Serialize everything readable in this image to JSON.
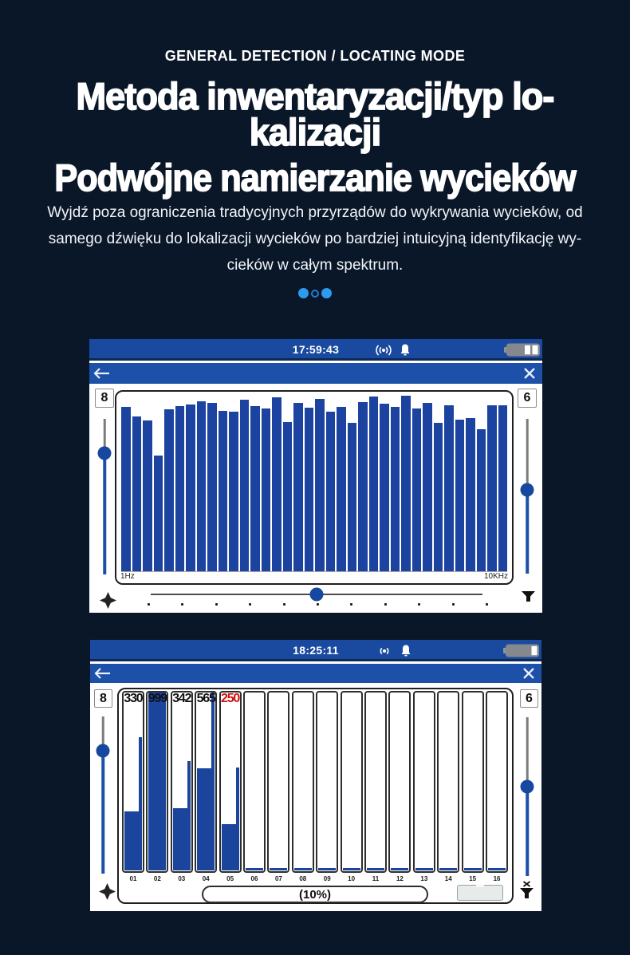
{
  "page": {
    "background": "#0a1728",
    "accent_blue": "#2e9bf0"
  },
  "header": {
    "eyebrow": "GENERAL DETECTION / LOCATING MODE",
    "title_line1": "Metoda inwentaryzacji/typ lo-",
    "title_line2": "kalizacji",
    "subtitle": "Podwójne namierzanie wycieków",
    "paragraph_line1": "Wyjdź poza ograniczenia tradycyjnych przyrządów do wykrywania wycieków, od",
    "paragraph_line2": "samego dźwięku do lokalizacji wycieków po bardziej intuicyjną identyfikację wy-",
    "paragraph_line3": "cieków w całym spektrum.",
    "carousel_dots": [
      {
        "style": "filled"
      },
      {
        "style": "ring"
      },
      {
        "style": "filled"
      }
    ]
  },
  "screen1": {
    "status": {
      "time": "17:59:43",
      "icons": [
        "signal-icon",
        "bell-icon"
      ],
      "battery_segments": 2
    },
    "nav_icons": [
      "back-arrow-icon",
      "close-icon"
    ],
    "bottom_icons": [
      "move-icon",
      "filter-funnel-icon"
    ],
    "left_level": "8",
    "right_level": "6",
    "sliders": {
      "left_knob": 0.22,
      "right_knob": 0.46,
      "bottom_knob": 0.5,
      "bottom_tick_count": 11
    },
    "spectrum": {
      "type": "bar",
      "x_min_label": "1Hz",
      "x_max_label": "10KHz",
      "bar_color": "#1c43a0",
      "bars_pct": [
        92.8,
        87.4,
        85.2,
        65.5,
        91.5,
        93.3,
        94.2,
        96.0,
        95.1,
        90.6,
        90.1,
        96.9,
        93.3,
        91.9,
        98.2,
        84.3,
        95.1,
        92.4,
        97.3,
        90.1,
        92.8,
        83.9,
        95.5,
        98.7,
        94.6,
        92.8,
        99.1,
        91.9,
        95.1,
        83.9,
        93.7,
        85.7,
        86.5,
        80.3,
        93.7,
        93.7
      ]
    }
  },
  "screen2": {
    "status": {
      "time": "18:25:11",
      "icons": [
        "signal-icon",
        "bell-icon"
      ],
      "battery_segments": 1
    },
    "nav_icons": [
      "back-arrow-icon",
      "close-icon"
    ],
    "bottom_icons": [
      "move-icon",
      "filter-clear-icon"
    ],
    "left_level": "8",
    "right_level": "6",
    "sliders": {
      "left_knob": 0.218,
      "right_knob": 0.437
    },
    "channels": {
      "type": "bar",
      "bar_color": "#1b449c",
      "labels": [
        "01",
        "02",
        "03",
        "04",
        "05",
        "06",
        "07",
        "08",
        "09",
        "10",
        "11",
        "12",
        "13",
        "14",
        "15",
        "16"
      ],
      "values": [
        "330",
        "999",
        "342",
        "565",
        "250",
        "",
        "",
        "",
        "",
        "",
        "",
        "",
        "",
        "",
        "",
        ""
      ],
      "value_colors": [
        "#111111",
        "#111111",
        "#111111",
        "#111111",
        "#cc1111",
        "",
        "",
        "",
        "",
        "",
        "",
        "",
        "",
        "",
        "",
        ""
      ],
      "main_pct": [
        33,
        100,
        35,
        57,
        26,
        1.5,
        1.5,
        1.5,
        1.5,
        1.5,
        1.5,
        1.5,
        1.5,
        1.5,
        1.5,
        1.5
      ],
      "peak_pct": [
        74.5,
        100,
        61,
        99.5,
        57.5,
        0,
        0,
        0,
        0,
        0,
        0,
        0,
        0,
        0,
        0,
        0
      ]
    },
    "readout": "(10%)"
  }
}
